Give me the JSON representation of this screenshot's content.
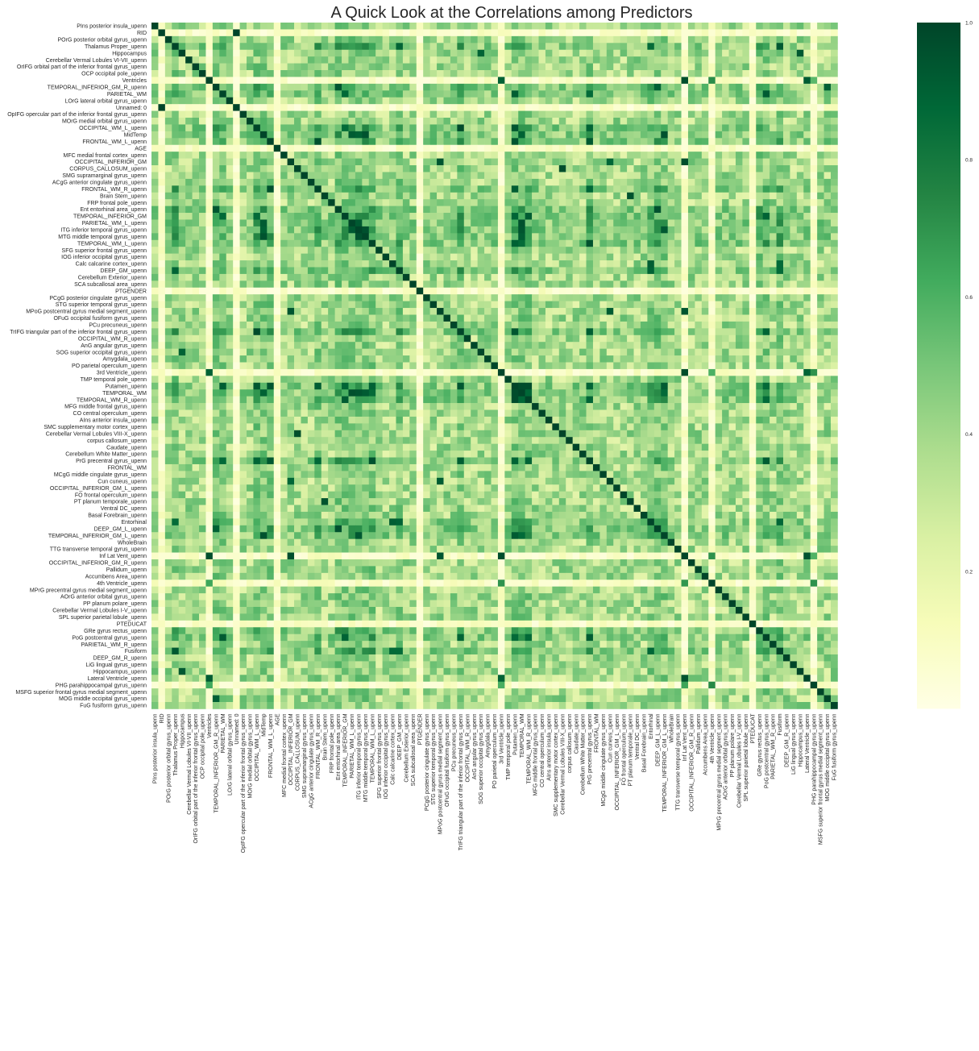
{
  "chart_data": {
    "type": "heatmap",
    "title": "A Quick Look at the Correlations among Predictors",
    "xlabel": "",
    "ylabel": "",
    "colormap": "YlGn",
    "colors": [
      "#ffffe5",
      "#f7fcb9",
      "#d9f0a3",
      "#addd8e",
      "#78c679",
      "#41ab5d",
      "#238443",
      "#006837",
      "#004529"
    ],
    "value_range": [
      0.0,
      1.0
    ],
    "colorbar_ticks": [
      "0.2",
      "0.4",
      "0.6",
      "0.8",
      "1.0"
    ],
    "colorbar_tick_values": [
      0.2,
      0.4,
      0.6,
      0.8,
      1.0
    ],
    "labels": [
      "PIns  posterior insula_upenn",
      "RID",
      "POrG  posterior orbital gyrus_upenn",
      "Thalamus Proper_upenn",
      "Hippocampus",
      "Cerebellar Vermal Lobules VI-VII_upenn",
      "OrIFG orbital part of the inferior frontal gyrus_upenn",
      "OCP   occipital pole_upenn",
      "Ventricles",
      "TEMPORAL_INFERIOR_GM_R_upenn",
      "PARIETAL_WM",
      "LOrG  lateral orbital gyrus_upenn",
      "Unnamed: 0",
      "OpIFG opercular part of the inferior frontal gyrus_upenn",
      "MOrG  medial orbital gyrus_upenn",
      "OCCIPITAL_WM_L_upenn",
      "MidTemp",
      "FRONTAL_WM_L_upenn",
      "AGE",
      "MFC   medial frontal cortex_upenn",
      "OCCIPITAL_INFERIOR_GM",
      "CORPUS_CALLOSUM_upenn",
      "SMG   supramarginal gyrus_upenn",
      "ACgG  anterior cingulate gyrus_upenn",
      "FRONTAL_WM_R_upenn",
      "Brain Stem_upenn",
      "FRP   frontal pole_upenn",
      "Ent   entorhinal area_upenn",
      "TEMPORAL_INFERIOR_GM",
      "PARIETAL_WM_L_upenn",
      "ITG   inferior temporal gyrus_upenn",
      "MTG   middle temporal gyrus_upenn",
      "TEMPORAL_WM_L_upenn",
      "SFG   superior frontal gyrus_upenn",
      "IOG   inferior occipital gyrus_upenn",
      "Calc  calcarine cortex_upenn",
      "DEEP_GM_upenn",
      "Cerebellum Exterior_upenn",
      "SCA   subcallosal area_upenn",
      "PTGENDER",
      "PCgG  posterior cingulate gyrus_upenn",
      "STG   superior temporal gyrus_upenn",
      "MPoG  postcentral gyrus medial segment_upenn",
      "OFuG  occipital fusiform gyrus_upenn",
      "PCu   precuneus_upenn",
      "TrIFG triangular part of the inferior frontal gyrus_upenn",
      "OCCIPITAL_WM_R_upenn",
      "AnG   angular gyrus_upenn",
      "SOG   superior occipital gyrus_upenn",
      "Amygdala_upenn",
      "PO    parietal operculum_upenn",
      "3rd Ventricle_upenn",
      "TMP   temporal pole_upenn",
      "Putamen_upenn",
      "TEMPORAL_WM",
      "TEMPORAL_WM_R_upenn",
      "MFG   middle frontal gyrus_upenn",
      "CO    central operculum_upenn",
      "AIns  anterior insula_upenn",
      "SMC   supplementary motor cortex_upenn",
      "Cerebellar Vermal Lobules VIII-X_upenn",
      "corpus callosum_upenn",
      "Caudate_upenn",
      "Cerebellum White Matter_upenn",
      "PrG   precentral gyrus_upenn",
      "FRONTAL_WM",
      "MCgG  middle cingulate gyrus_upenn",
      "Cun   cuneus_upenn",
      "OCCIPITAL_INFERIOR_GM_L_upenn",
      "FO    frontal operculum_upenn",
      "PT    planum temporale_upenn",
      "Ventral DC_upenn",
      "Basal Forebrain_upenn",
      "Entorhinal",
      "DEEP_GM_L_upenn",
      "TEMPORAL_INFERIOR_GM_L_upenn",
      "WholeBrain",
      "TTG   transverse temporal gyrus_upenn",
      "Inf Lat Vent_upenn",
      "OCCIPITAL_INFERIOR_GM_R_upenn",
      "Pallidum_upenn",
      "Accumbens Area_upenn",
      "4th Ventricle_upenn",
      "MPrG  precentral gyrus medial segment_upenn",
      "AOrG  anterior orbital gyrus_upenn",
      "PP    planum polare_upenn",
      "Cerebellar Vermal Lobules I-V_upenn",
      "SPL   superior parietal lobule_upenn",
      "PTEDUCAT",
      "GRe   gyrus rectus_upenn",
      "PoG   postcentral gyrus_upenn",
      "PARIETAL_WM_R_upenn",
      "Fusiform",
      "DEEP_GM_R_upenn",
      "LiG   lingual gyrus_upenn",
      "Hippocampus_upenn",
      "Lateral Ventricle_upenn",
      "PHG   parahippocampal gyrus_upenn",
      "MSFG  superior frontal gyrus medial segment_upenn",
      "MOG   middle occipital gyrus_upenn",
      "FuG   fusiform gyrus_upenn"
    ],
    "weak_rows": [
      1,
      8,
      12,
      18,
      39,
      51,
      78,
      82,
      88,
      97
    ],
    "id_pair": [
      1,
      12
    ],
    "strong_pairs": [
      [
        3,
        73
      ],
      [
        3,
        92
      ],
      [
        3,
        36
      ],
      [
        4,
        95
      ],
      [
        4,
        48
      ],
      [
        8,
        51
      ],
      [
        8,
        78
      ],
      [
        8,
        96
      ],
      [
        51,
        78
      ],
      [
        51,
        96
      ],
      [
        78,
        96
      ],
      [
        9,
        27
      ],
      [
        9,
        74
      ],
      [
        9,
        99
      ],
      [
        9,
        102
      ],
      [
        74,
        101
      ],
      [
        27,
        101
      ],
      [
        27,
        74
      ],
      [
        10,
        28
      ],
      [
        10,
        53
      ],
      [
        10,
        64
      ],
      [
        10,
        90
      ],
      [
        28,
        53
      ],
      [
        28,
        90
      ],
      [
        53,
        64
      ],
      [
        53,
        90
      ],
      [
        64,
        90
      ],
      [
        15,
        45
      ],
      [
        15,
        53
      ],
      [
        15,
        64
      ],
      [
        45,
        53
      ],
      [
        45,
        64
      ],
      [
        45,
        90
      ],
      [
        15,
        28
      ],
      [
        16,
        29
      ],
      [
        16,
        30
      ],
      [
        16,
        54
      ],
      [
        16,
        75
      ],
      [
        29,
        30
      ],
      [
        30,
        54
      ],
      [
        29,
        54
      ],
      [
        30,
        75
      ],
      [
        17,
        24
      ],
      [
        17,
        64
      ],
      [
        17,
        53
      ],
      [
        24,
        64
      ],
      [
        24,
        53
      ],
      [
        20,
        42
      ],
      [
        20,
        67
      ],
      [
        20,
        78
      ],
      [
        42,
        67
      ],
      [
        42,
        78
      ],
      [
        21,
        60
      ],
      [
        25,
        70
      ],
      [
        35,
        73
      ],
      [
        35,
        92
      ],
      [
        36,
        73
      ],
      [
        36,
        92
      ],
      [
        73,
        92
      ],
      [
        54,
        75
      ],
      [
        54,
        53
      ],
      [
        53,
        75
      ],
      [
        53,
        55
      ],
      [
        54,
        55
      ],
      [
        55,
        64
      ],
      [
        55,
        90
      ],
      [
        55,
        28
      ],
      [
        31,
        54
      ],
      [
        31,
        16
      ],
      [
        31,
        30
      ],
      [
        32,
        53
      ],
      [
        32,
        54
      ],
      [
        32,
        64
      ]
    ],
    "moderate_groups": [
      [
        3,
        9,
        10,
        15,
        16,
        17,
        24,
        27,
        28,
        29,
        30,
        31,
        32,
        36,
        45,
        53,
        54,
        55,
        64,
        73,
        74,
        75,
        89,
        90,
        92
      ],
      [
        0,
        2,
        5,
        6,
        7,
        11,
        13,
        14,
        19,
        22,
        23,
        26,
        33,
        34,
        40,
        41,
        43,
        44,
        46,
        47,
        49,
        52,
        55,
        56,
        57,
        58,
        59,
        62,
        63,
        65,
        66,
        67,
        68,
        69,
        70,
        71,
        76,
        79,
        80,
        83,
        84,
        85,
        86,
        87,
        89,
        91,
        93,
        94,
        98,
        99,
        100
      ]
    ]
  }
}
